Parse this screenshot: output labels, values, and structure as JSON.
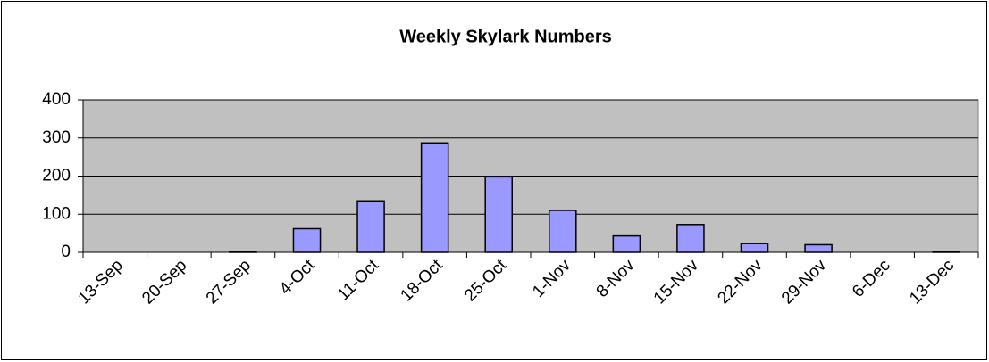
{
  "chart_data": {
    "type": "bar",
    "title": "Weekly Skylark Numbers",
    "categories": [
      "13-Sep",
      "20-Sep",
      "27-Sep",
      "4-Oct",
      "11-Oct",
      "18-Oct",
      "25-Oct",
      "1-Nov",
      "8-Nov",
      "15-Nov",
      "22-Nov",
      "29-Nov",
      "6-Dec",
      "13-Dec"
    ],
    "values": [
      0,
      0,
      2,
      62,
      135,
      287,
      198,
      110,
      43,
      73,
      23,
      20,
      0,
      2
    ],
    "color": "#9999ff",
    "background": "#c0c0c0",
    "ylim": [
      0,
      400
    ],
    "yticks": [
      0,
      100,
      200,
      300,
      400
    ],
    "grid": true
  }
}
